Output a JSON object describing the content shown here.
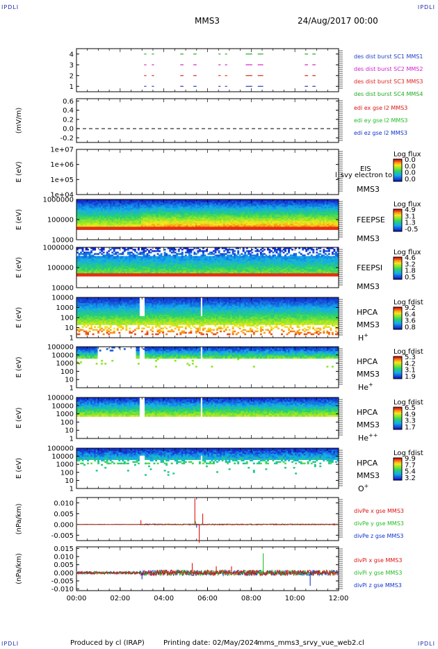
{
  "header": {
    "corner_label": "IPDLI",
    "spacecraft": "MMS3",
    "date": "24/Aug/2017 00:00"
  },
  "footer": {
    "produced_by": "Produced by cl (IRAP)",
    "printing_date": "Printing date: 02/May/2024",
    "filename": "mms_mms3_srvy_vue_web2.cl"
  },
  "colors": {
    "des_sc1": "#1f3fbf",
    "des_sc2": "#cc22cc",
    "des_sc3": "#dd2222",
    "des_sc4": "#22aa22",
    "x_component": "#dd1111",
    "y_component": "#22bb22",
    "z_component": "#1133cc"
  },
  "chart_data": [
    {
      "type": "line",
      "panel": "burst",
      "ylabel": "",
      "yticks": [
        "1",
        "2",
        "3",
        "4"
      ],
      "ylim": [
        0.5,
        4.5
      ],
      "series": [
        {
          "name": "des dist burst SC1 MMS1",
          "level": 1
        },
        {
          "name": "des dist burst SC2 MMS2",
          "level": 3
        },
        {
          "name": "des dist burst SC3 MMS3",
          "level": 2
        },
        {
          "name": "des dist burst SC4 MMS4",
          "level": 4
        }
      ],
      "burst_intervals_hours": [
        [
          3.1,
          3.2
        ],
        [
          3.45,
          3.55
        ],
        [
          4.75,
          4.9
        ],
        [
          5.35,
          5.5
        ],
        [
          6.5,
          6.6
        ],
        [
          6.8,
          6.9
        ],
        [
          7.75,
          8.05
        ],
        [
          8.3,
          8.55
        ],
        [
          10.45,
          10.6
        ],
        [
          10.8,
          10.95
        ]
      ]
    },
    {
      "type": "line",
      "panel": "edi",
      "ylabel": "(mV/m)",
      "yticks": [
        "-0.2",
        "0.0",
        "0.2",
        "0.4",
        "0.6"
      ],
      "ylim": [
        -0.3,
        0.65
      ],
      "series": [
        {
          "name": "edi ex gse l2 MMS3",
          "value": 0.0
        },
        {
          "name": "edi ey gse l2 MMS3",
          "value": 0.0
        },
        {
          "name": "edi ez gse l2 MMS3",
          "value": 0.0
        }
      ]
    },
    {
      "type": "heatmap",
      "panel": "eis",
      "ylabel": "E (eV)",
      "yticks": [
        "1e+04",
        "1e+05",
        "1e+06",
        "1e+07"
      ],
      "log_y": true,
      "ylim": [
        10000,
        10000000
      ],
      "label": [
        "EIS",
        "MMS3"
      ],
      "overlay_text": "l_svy electron to",
      "colorbar_title": "Log flux",
      "colorbar_ticks": [
        "0.0",
        "0.0",
        "0.0",
        "0.0"
      ]
    },
    {
      "type": "heatmap",
      "panel": "feepse",
      "ylabel": "E (eV)",
      "yticks": [
        "10000",
        "100000",
        "1000000"
      ],
      "log_y": true,
      "ylim": [
        10000,
        1000000
      ],
      "label": [
        "FEEPSE",
        "MMS3"
      ],
      "colorbar_title": "Log flux",
      "colorbar_ticks": [
        "4.9",
        "3.1",
        "1.3",
        "-0.5"
      ]
    },
    {
      "type": "heatmap",
      "panel": "feepsi",
      "ylabel": "E (eV)",
      "yticks": [
        "10000",
        "100000",
        "1000000"
      ],
      "log_y": true,
      "ylim": [
        10000,
        1000000
      ],
      "label": [
        "FEEPSI",
        "MMS3"
      ],
      "colorbar_title": "Log flux",
      "colorbar_ticks": [
        "4.6",
        "3.2",
        "1.8",
        "0.5"
      ]
    },
    {
      "type": "heatmap",
      "panel": "hpca_h",
      "ylabel": "E (eV)",
      "yticks": [
        "1",
        "10",
        "100",
        "1000",
        "10000"
      ],
      "log_y": true,
      "ylim": [
        1,
        10000
      ],
      "label": [
        "HPCA",
        "MMS3"
      ],
      "species": "H",
      "species_charge": "+",
      "colorbar_title": "Log fdist",
      "colorbar_ticks": [
        "9.2",
        "6.4",
        "3.6",
        "0.8"
      ]
    },
    {
      "type": "heatmap",
      "panel": "hpca_he1",
      "ylabel": "E (eV)",
      "yticks": [
        "1",
        "10",
        "100",
        "1000",
        "10000",
        "100000"
      ],
      "log_y": true,
      "ylim": [
        1,
        100000
      ],
      "label": [
        "HPCA",
        "MMS3"
      ],
      "species": "He",
      "species_charge": "+",
      "colorbar_title": "Log fdist",
      "colorbar_ticks": [
        "5.3",
        "4.2",
        "3.1",
        "1.9"
      ]
    },
    {
      "type": "heatmap",
      "panel": "hpca_he2",
      "ylabel": "E (eV)",
      "yticks": [
        "1",
        "10",
        "100",
        "1000",
        "10000",
        "100000"
      ],
      "log_y": true,
      "ylim": [
        1,
        100000
      ],
      "label": [
        "HPCA",
        "MMS3"
      ],
      "species": "He",
      "species_charge": "++",
      "colorbar_title": "Log fdist",
      "colorbar_ticks": [
        "6.5",
        "4.9",
        "3.3",
        "1.7"
      ]
    },
    {
      "type": "heatmap",
      "panel": "hpca_o",
      "ylabel": "E (eV)",
      "yticks": [
        "1",
        "10",
        "100",
        "1000",
        "10000",
        "100000"
      ],
      "log_y": true,
      "ylim": [
        1,
        100000
      ],
      "label": [
        "HPCA",
        "MMS3"
      ],
      "species": "O",
      "species_charge": "+",
      "colorbar_title": "Log fdist",
      "colorbar_ticks": [
        "9.9",
        "7.7",
        "5.4",
        "3.2"
      ]
    },
    {
      "type": "line",
      "panel": "dive",
      "ylabel": "(nPa/km)",
      "yticks": [
        "-0.005",
        "0.000",
        "0.005",
        "0.010"
      ],
      "ylim": [
        -0.0075,
        0.0125
      ],
      "series": [
        {
          "name": "divPe x gse MMS3"
        },
        {
          "name": "divPe y gse MMS3"
        },
        {
          "name": "divPe z gse MMS3"
        }
      ],
      "spikes": [
        {
          "series": 0,
          "t": 5.42,
          "value": 0.012
        },
        {
          "series": 0,
          "t": 5.62,
          "value": -0.0085
        },
        {
          "series": 0,
          "t": 5.78,
          "value": 0.005
        },
        {
          "series": 0,
          "t": 2.95,
          "value": 0.002
        },
        {
          "series": 1,
          "t": 5.45,
          "value": 0.0015
        },
        {
          "series": 2,
          "t": 5.5,
          "value": -0.0015
        }
      ]
    },
    {
      "type": "line",
      "panel": "divi",
      "ylabel": "(nPa/km)",
      "xlabel": "",
      "yticks": [
        "-0.010",
        "-0.005",
        "0.000",
        "0.005",
        "0.010",
        "0.015"
      ],
      "ylim": [
        -0.011,
        0.016
      ],
      "xticks": [
        "00:00",
        "02:00",
        "04:00",
        "06:00",
        "08:00",
        "10:00",
        "12:00"
      ],
      "xlim_hours": [
        0,
        12
      ],
      "series": [
        {
          "name": "divPi x gse MMS3"
        },
        {
          "name": "divPi y gse MMS3"
        },
        {
          "name": "divPi z gse MMS3"
        }
      ],
      "spikes": [
        {
          "series": 0,
          "t": 5.3,
          "value": 0.006
        },
        {
          "series": 0,
          "t": 6.4,
          "value": 0.004
        },
        {
          "series": 0,
          "t": 7.1,
          "value": 0.004
        },
        {
          "series": 1,
          "t": 8.55,
          "value": 0.012
        },
        {
          "series": 2,
          "t": 10.7,
          "value": -0.008
        },
        {
          "series": 2,
          "t": 3.0,
          "value": -0.004
        }
      ]
    }
  ]
}
